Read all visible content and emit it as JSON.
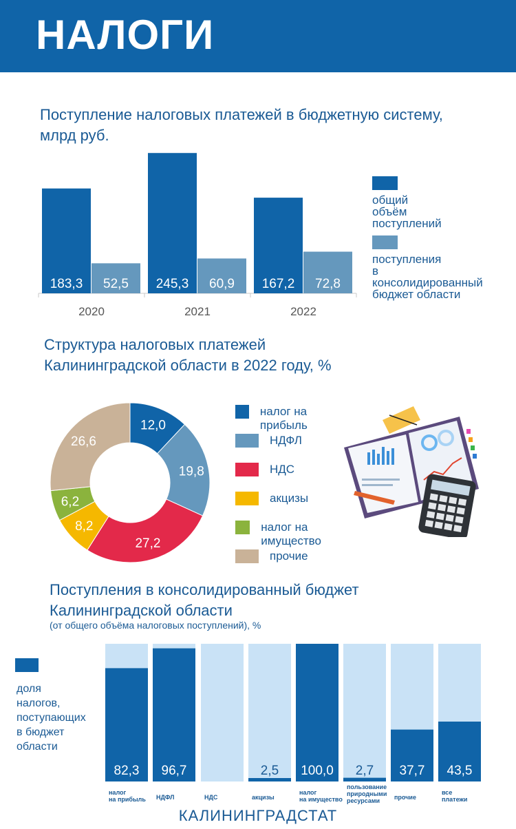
{
  "header": {
    "title": "НАЛОГИ"
  },
  "section1": {
    "title_line1": "Поступление налоговых платежей в бюджетную систему,",
    "title_line2": "млрд руб."
  },
  "section2": {
    "title_line1": "Структура налоговых платежей",
    "title_line2": "Калининградской области в 2022 году, %"
  },
  "section3": {
    "title_line1": "Поступления в консолидированный бюджет",
    "title_line2": "Калининградской области",
    "subtitle": "(от общего объёма налоговых поступлений), %"
  },
  "footer": {
    "text": "КАЛИНИНГРАДСТАТ"
  },
  "colors": {
    "primary": "#1064a8",
    "secondary": "#6598bd",
    "light": "#c9e2f6",
    "text": "#1a5a94"
  },
  "chart_data": [
    {
      "type": "bar",
      "categories": [
        "2020",
        "2021",
        "2022"
      ],
      "series": [
        {
          "name": "общий объём поступлений",
          "values": [
            183.3,
            245.3,
            167.2
          ],
          "labels": [
            "183,3",
            "245,3",
            "167,2"
          ],
          "color": "#1064a8"
        },
        {
          "name": "поступления в консолидированный бюджет области",
          "values": [
            52.5,
            60.9,
            72.8
          ],
          "labels": [
            "52,5",
            "60,9",
            "72,8"
          ],
          "color": "#6598bd"
        }
      ],
      "legend": [
        {
          "lines": [
            "общий объём",
            "поступлений"
          ],
          "color": "#1064a8"
        },
        {
          "lines": [
            "поступления",
            "в консолидированный",
            "бюджет области"
          ],
          "color": "#6598bd"
        }
      ],
      "ylim": [
        0,
        260
      ],
      "legend_position": "right"
    },
    {
      "type": "pie",
      "categories": [
        "налог на прибыль",
        "НДФЛ",
        "НДС",
        "акцизы",
        "налог на имущество",
        "прочие"
      ],
      "values": [
        12.0,
        19.8,
        27.2,
        8.2,
        6.2,
        26.6
      ],
      "labels": [
        "12,0",
        "19,8",
        "27,2",
        "8,2",
        "6,2",
        "26,6"
      ],
      "colors": [
        "#1064a8",
        "#6598bd",
        "#e3294a",
        "#f5b800",
        "#8bb33d",
        "#c9b298"
      ],
      "legend_position": "right"
    },
    {
      "type": "bar",
      "stacked": true,
      "categories": [
        [
          "налог",
          "на прибыль"
        ],
        [
          "НДФЛ"
        ],
        [
          "НДС"
        ],
        [
          "акцизы"
        ],
        [
          "налог",
          "на имущество"
        ],
        [
          "пользование",
          "природными",
          "ресурсами"
        ],
        [
          "прочие"
        ],
        [
          "все",
          "платежи"
        ]
      ],
      "values": [
        82.3,
        96.7,
        0,
        2.5,
        100.0,
        2.7,
        37.7,
        43.5
      ],
      "labels": [
        "82,3",
        "96,7",
        "",
        "2,5",
        "100,0",
        "2,7",
        "37,7",
        "43,5"
      ],
      "ylim": [
        0,
        100
      ],
      "legend": {
        "lines": [
          "доля налогов,",
          "поступающих",
          "в бюджет",
          "области"
        ],
        "color": "#1064a8"
      },
      "colors": {
        "share": "#1064a8",
        "rest": "#c9e2f6"
      },
      "legend_position": "left"
    }
  ],
  "illustration": {
    "icon": "notebook-calculator-illustration"
  }
}
